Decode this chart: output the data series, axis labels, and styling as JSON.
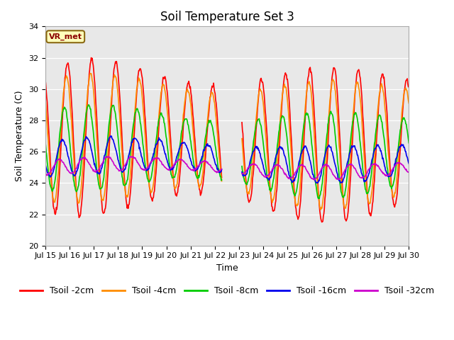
{
  "title": "Soil Temperature Set 3",
  "xlabel": "Time",
  "ylabel": "Soil Temperature (C)",
  "ylim": [
    20,
    34
  ],
  "xlim": [
    0,
    15
  ],
  "xtick_positions": [
    0,
    1,
    2,
    3,
    4,
    5,
    6,
    7,
    8,
    9,
    10,
    11,
    12,
    13,
    14,
    15
  ],
  "xtick_labels": [
    "Jul 15",
    "Jul 16",
    "Jul 17",
    "Jul 18",
    "Jul 19",
    "Jul 20",
    "Jul 21",
    "Jul 22",
    "Jul 23",
    "Jul 24",
    "Jul 25",
    "Jul 26",
    "Jul 27",
    "Jul 28",
    "Jul 29",
    "Jul 30"
  ],
  "ytick_vals": [
    20,
    22,
    24,
    26,
    28,
    30,
    32,
    34
  ],
  "colors": {
    "2cm": "#FF0000",
    "4cm": "#FF8C00",
    "8cm": "#00CC00",
    "16cm": "#0000EE",
    "32cm": "#CC00CC"
  },
  "legend_labels": [
    "Tsoil -2cm",
    "Tsoil -4cm",
    "Tsoil -8cm",
    "Tsoil -16cm",
    "Tsoil -32cm"
  ],
  "vrmet_box_color": "#FFFFBB",
  "vrmet_border_color": "#8B6914",
  "vrmet_text_color": "#8B0000",
  "plot_bg_color": "#E8E8E8",
  "fig_bg_color": "#FFFFFF",
  "title_fontsize": 12,
  "axis_label_fontsize": 9,
  "tick_fontsize": 8,
  "legend_fontsize": 9,
  "linewidth": 1.2
}
